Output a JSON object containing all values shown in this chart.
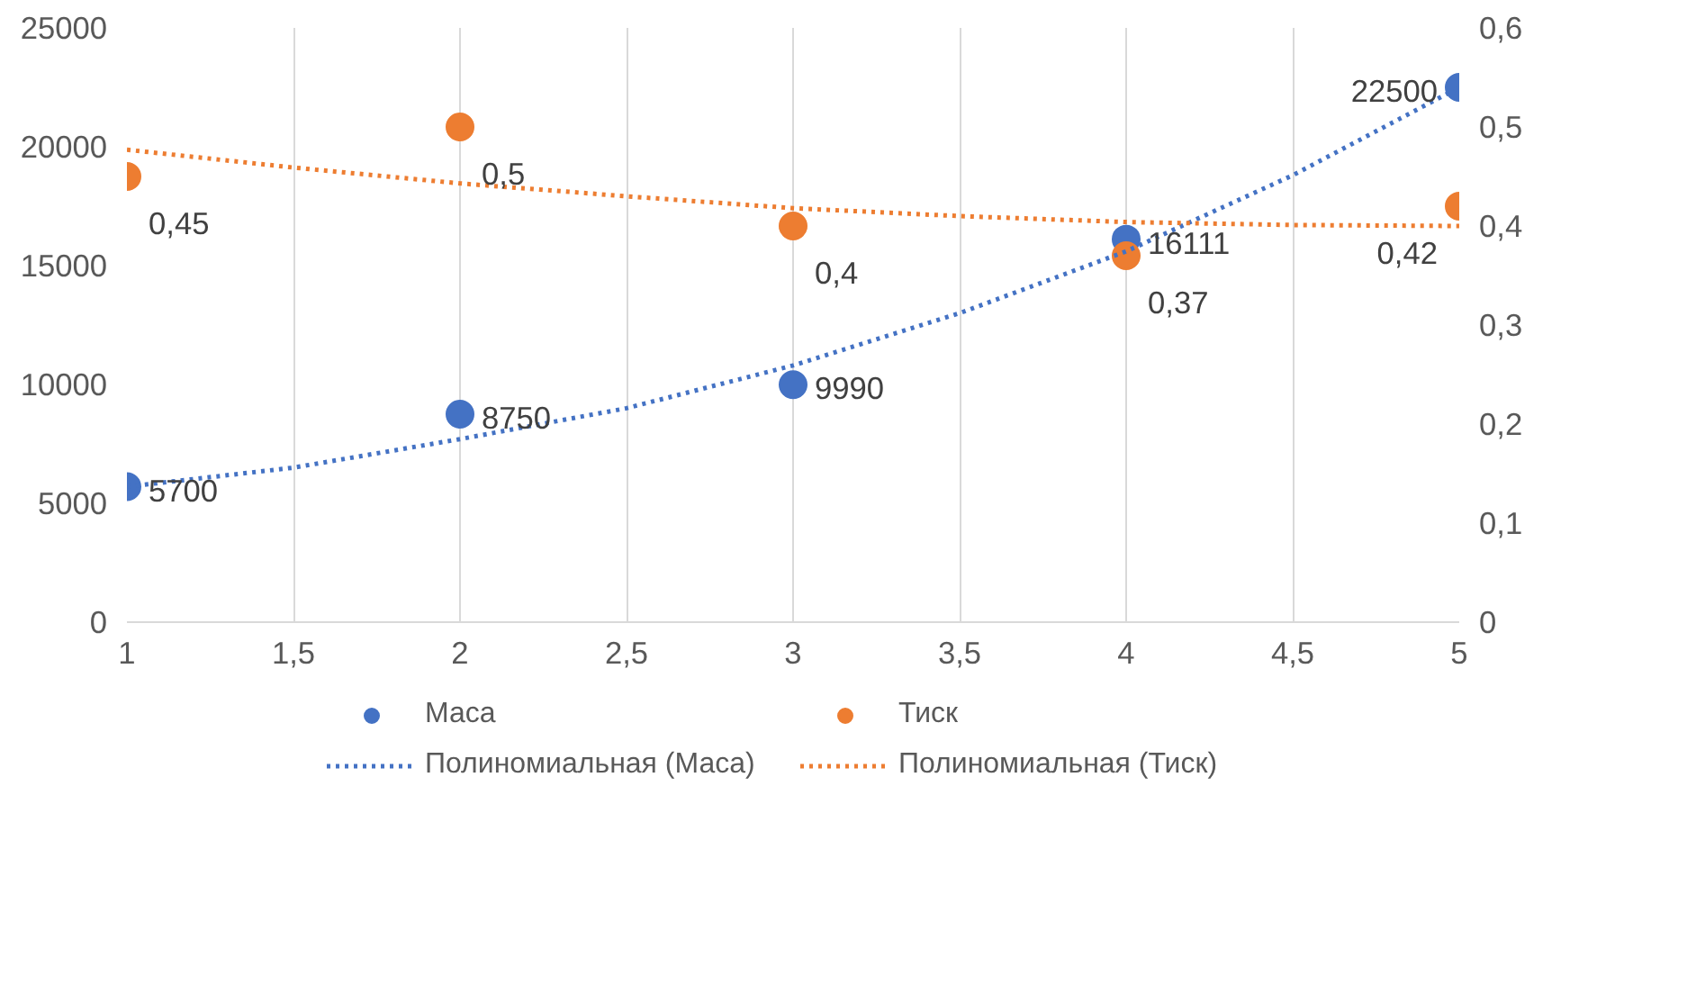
{
  "chart_data": {
    "type": "scatter",
    "x": [
      1,
      2,
      3,
      4,
      5
    ],
    "series": [
      {
        "name": "Маса",
        "color": "#4472c4",
        "values": [
          5700,
          8750,
          9990,
          16111,
          22500
        ],
        "value_labels": [
          "5700",
          "8750",
          "9990",
          "16111",
          "22500"
        ],
        "marker": "circle"
      },
      {
        "name": "Тиск",
        "color": "#ed7d31",
        "values": [
          0.45,
          0.5,
          0.4,
          0.37,
          0.42
        ],
        "value_labels": [
          "0,45",
          "0,5",
          "0,4",
          "0,37",
          "0,42"
        ],
        "axis": "y2",
        "marker": "circle"
      },
      {
        "name": "Полиномиальная (Маса)",
        "type": "line",
        "line_style": "dotted",
        "color": "#4472c4",
        "x": [
          1,
          1.5,
          2,
          2.5,
          3,
          3.5,
          4,
          4.5,
          5
        ],
        "values": [
          5700,
          6500,
          7700,
          9000,
          10800,
          13000,
          15600,
          18800,
          22500
        ]
      },
      {
        "name": "Полиномиальная (Тиск)",
        "type": "line",
        "line_style": "dotted",
        "color": "#ed7d31",
        "axis": "y2",
        "x": [
          1,
          1.5,
          2,
          2.5,
          3,
          3.5,
          4,
          4.5,
          5
        ],
        "values": [
          0.477,
          0.459,
          0.443,
          0.43,
          0.418,
          0.41,
          0.404,
          0.401,
          0.4
        ]
      }
    ],
    "xlim": [
      1,
      5
    ],
    "xticks": [
      1,
      {
        "value": 1.5,
        "label": "1,5"
      },
      2,
      {
        "value": 2.5,
        "label": "2,5"
      },
      3,
      {
        "value": 3.5,
        "label": "3,5"
      },
      4,
      {
        "value": 4.5,
        "label": "4,5"
      },
      5
    ],
    "ylim": [
      0,
      25000
    ],
    "yticks": [
      0,
      5000,
      10000,
      15000,
      20000,
      25000
    ],
    "y2lim": [
      0,
      0.6
    ],
    "y2ticks": [
      0,
      {
        "value": 0.1,
        "label": "0,1"
      },
      {
        "value": 0.2,
        "label": "0,2"
      },
      {
        "value": 0.3,
        "label": "0,3"
      },
      {
        "value": 0.4,
        "label": "0,4"
      },
      {
        "value": 0.5,
        "label": "0,5"
      },
      {
        "value": 0.6,
        "label": "0,6"
      }
    ],
    "grid": "x",
    "legend": "bottom"
  }
}
